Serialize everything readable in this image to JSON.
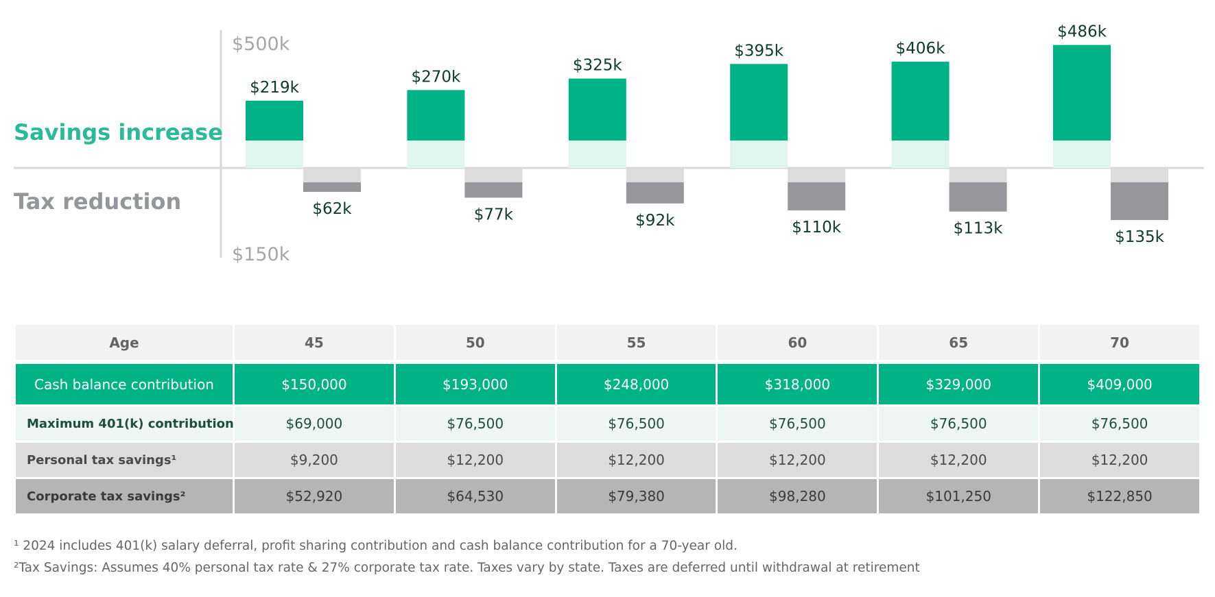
{
  "chart_data": {
    "type": "bar",
    "categories": [
      "45",
      "50",
      "55",
      "60",
      "65",
      "70"
    ],
    "series": [
      {
        "name": "Savings increase",
        "values": [
          219,
          270,
          325,
          395,
          406,
          486
        ],
        "labels": [
          "$219k",
          "$270k",
          "$325k",
          "$395k",
          "$406k",
          "$486k"
        ]
      },
      {
        "name": "Tax reduction",
        "values": [
          62,
          77,
          92,
          110,
          113,
          135
        ],
        "labels": [
          "$62k",
          "$77k",
          "$92k",
          "$110k",
          "$113k",
          "$135k"
        ]
      }
    ],
    "top_axis_label": "$500k",
    "bottom_axis_label": "$150k",
    "units": "thousands of dollars",
    "colors": {
      "savings": "#00b386",
      "savings_base": "#e0f5ee",
      "tax": "#97979b",
      "tax_base": "#dcdcdc",
      "value_label": "#0d3b2e",
      "axis_label": "#a6a6a8"
    }
  },
  "labels": {
    "savings_increase": "Savings increase",
    "tax_reduction": "Tax reduction"
  },
  "table": {
    "header": [
      "Age",
      "45",
      "50",
      "55",
      "60",
      "65",
      "70"
    ],
    "rows": [
      {
        "label": "Cash balance contribution",
        "values": [
          "$150,000",
          "$193,000",
          "$248,000",
          "$318,000",
          "$329,000",
          "$409,000"
        ]
      },
      {
        "label": "Maximum 401(k) contribution",
        "values": [
          "$69,000",
          "$76,500",
          "$76,500",
          "$76,500",
          "$76,500",
          "$76,500"
        ]
      },
      {
        "label": "Personal tax savings¹",
        "values": [
          "$9,200",
          "$12,200",
          "$12,200",
          "$12,200",
          "$12,200",
          "$12,200"
        ]
      },
      {
        "label": "Corporate tax savings²",
        "values": [
          "$52,920",
          "$64,530",
          "$79,380",
          "$98,280",
          "$101,250",
          "$122,850"
        ]
      }
    ]
  },
  "footnotes": [
    "¹ 2024 includes 401(k) salary deferral,  profit sharing contribution and cash balance contribution for a 70-year old.",
    "²Tax Savings: Assumes 40% personal tax rate & 27% corporate tax rate. Taxes vary by state. Taxes are deferred until withdrawal at retirement"
  ]
}
